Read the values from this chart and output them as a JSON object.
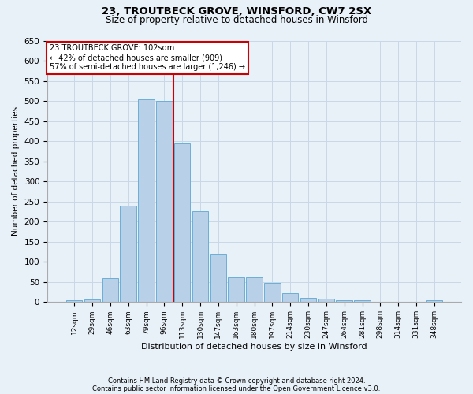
{
  "title1": "23, TROUTBECK GROVE, WINSFORD, CW7 2SX",
  "title2": "Size of property relative to detached houses in Winsford",
  "xlabel": "Distribution of detached houses by size in Winsford",
  "ylabel": "Number of detached properties",
  "categories": [
    "12sqm",
    "29sqm",
    "46sqm",
    "63sqm",
    "79sqm",
    "96sqm",
    "113sqm",
    "130sqm",
    "147sqm",
    "163sqm",
    "180sqm",
    "197sqm",
    "214sqm",
    "230sqm",
    "247sqm",
    "264sqm",
    "281sqm",
    "298sqm",
    "314sqm",
    "331sqm",
    "348sqm"
  ],
  "values": [
    4,
    6,
    60,
    240,
    505,
    500,
    395,
    225,
    120,
    62,
    62,
    47,
    22,
    10,
    8,
    5,
    5,
    1,
    1,
    1,
    5
  ],
  "bar_color": "#b8d0e8",
  "bar_edge_color": "#6baed6",
  "annotation_text_line1": "23 TROUTBECK GROVE: 102sqm",
  "annotation_text_line2": "← 42% of detached houses are smaller (909)",
  "annotation_text_line3": "57% of semi-detached houses are larger (1,246) →",
  "annotation_box_color": "#ffffff",
  "annotation_box_edge": "#cc0000",
  "red_line_color": "#cc0000",
  "grid_color": "#c8d8e8",
  "bg_color": "#e8f0f8",
  "ylim": [
    0,
    650
  ],
  "footnote1": "Contains HM Land Registry data © Crown copyright and database right 2024.",
  "footnote2": "Contains public sector information licensed under the Open Government Licence v3.0."
}
